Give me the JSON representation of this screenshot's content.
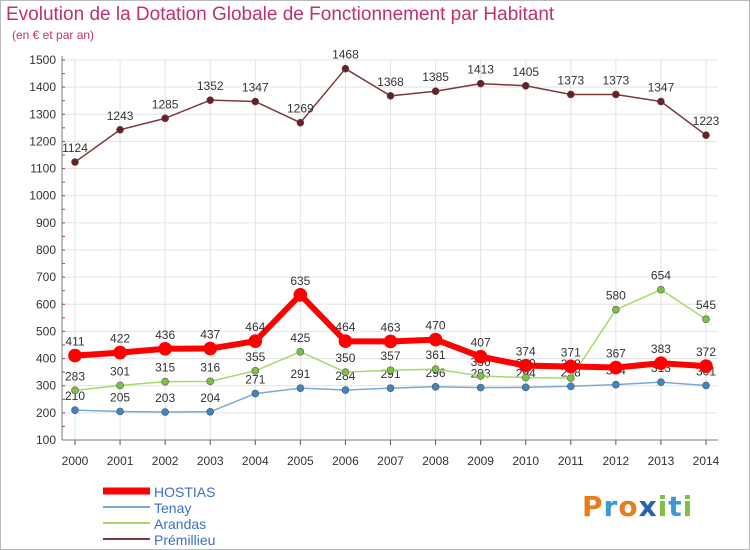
{
  "header": {
    "title": "Evolution de la Dotation Globale de Fonctionnement par Habitant",
    "subtitle": "(en € et par an)"
  },
  "logo": {
    "text": "Proxiti",
    "letters": [
      "P",
      "r",
      "o",
      "x",
      "i",
      "t",
      "i"
    ],
    "colors": [
      "#e87d1e",
      "#3d9ad1",
      "#e87d1e",
      "#2a5fae",
      "#7cc242",
      "#3d9ad1",
      "#7cc242"
    ]
  },
  "chart_data": {
    "type": "line",
    "title": "Evolution de la Dotation Globale de Fonctionnement par Habitant",
    "subtitle": "(en € et par an)",
    "x": [
      "2000",
      "2001",
      "2002",
      "2003",
      "2004",
      "2005",
      "2006",
      "2007",
      "2008",
      "2009",
      "2010",
      "2011",
      "2012",
      "2013",
      "2014"
    ],
    "ylim": [
      100,
      1500
    ],
    "yticks": [
      100,
      200,
      300,
      400,
      500,
      600,
      700,
      800,
      900,
      1000,
      1100,
      1200,
      1300,
      1400,
      1500
    ],
    "grid": true,
    "legend_position": "bottom-left",
    "series": [
      {
        "name": "HOSTIAS",
        "color": "#ff0000",
        "marker": "#ff0000",
        "width": 6,
        "values": [
          411,
          422,
          436,
          437,
          464,
          635,
          464,
          463,
          470,
          407,
          374,
          371,
          367,
          383,
          372
        ],
        "labels": [
          "411",
          "422",
          "436",
          "437",
          "464",
          "635",
          "464",
          "463",
          "470",
          "407",
          "374",
          "371",
          "367",
          "383",
          "372"
        ]
      },
      {
        "name": "Tenay",
        "color": "#7aa9d6",
        "marker": "#3d85c6",
        "width": 1.5,
        "values": [
          210,
          205,
          203,
          204,
          271,
          291,
          284,
          291,
          296,
          293,
          294,
          298,
          304,
          313,
          301
        ],
        "labels": [
          "210",
          "205",
          "203",
          "204",
          "271",
          "291",
          "284",
          "291",
          "296",
          "293",
          "294",
          "298",
          "304",
          "313",
          "301"
        ]
      },
      {
        "name": "Arandas",
        "color": "#a6d96a",
        "marker": "#7cc242",
        "width": 1.5,
        "values": [
          283,
          301,
          315,
          316,
          355,
          425,
          350,
          357,
          361,
          336,
          330,
          328,
          580,
          654,
          545
        ],
        "labels": [
          "283",
          "301",
          "315",
          "316",
          "355",
          "425",
          "350",
          "357",
          "361",
          "336",
          "330",
          "328",
          "580",
          "654",
          "545"
        ]
      },
      {
        "name": "Prémillieu",
        "color": "#7b3a3a",
        "marker": "#6b1f24",
        "width": 1.5,
        "values": [
          1124,
          1243,
          1285,
          1352,
          1347,
          1269,
          1468,
          1368,
          1385,
          1413,
          1405,
          1373,
          1373,
          1347,
          1223
        ],
        "labels": [
          "1124",
          "1243",
          "1285",
          "1352",
          "1347",
          "1269",
          "1468",
          "1368",
          "1385",
          "1413",
          "1405",
          "1373",
          "1373",
          "1347",
          "1223"
        ]
      }
    ]
  }
}
